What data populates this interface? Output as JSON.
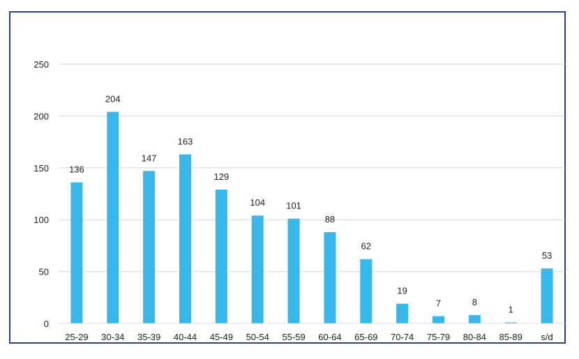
{
  "chart_data": {
    "type": "bar",
    "title": "",
    "xlabel": "",
    "ylabel": "",
    "categories": [
      "25-29",
      "30-34",
      "35-39",
      "40-44",
      "45-49",
      "50-54",
      "55-59",
      "60-64",
      "65-69",
      "70-74",
      "75-79",
      "80-84",
      "85-89",
      "s/d"
    ],
    "values": [
      136,
      204,
      147,
      163,
      129,
      104,
      101,
      88,
      62,
      19,
      7,
      8,
      1,
      53
    ],
    "ylim": [
      0,
      250
    ],
    "yticks": [
      0,
      50,
      100,
      150,
      200,
      250
    ],
    "grid": true,
    "legend": "none",
    "data_labels": true,
    "bar_color": "#36b9ea",
    "border_color": "#2b3aa0"
  }
}
